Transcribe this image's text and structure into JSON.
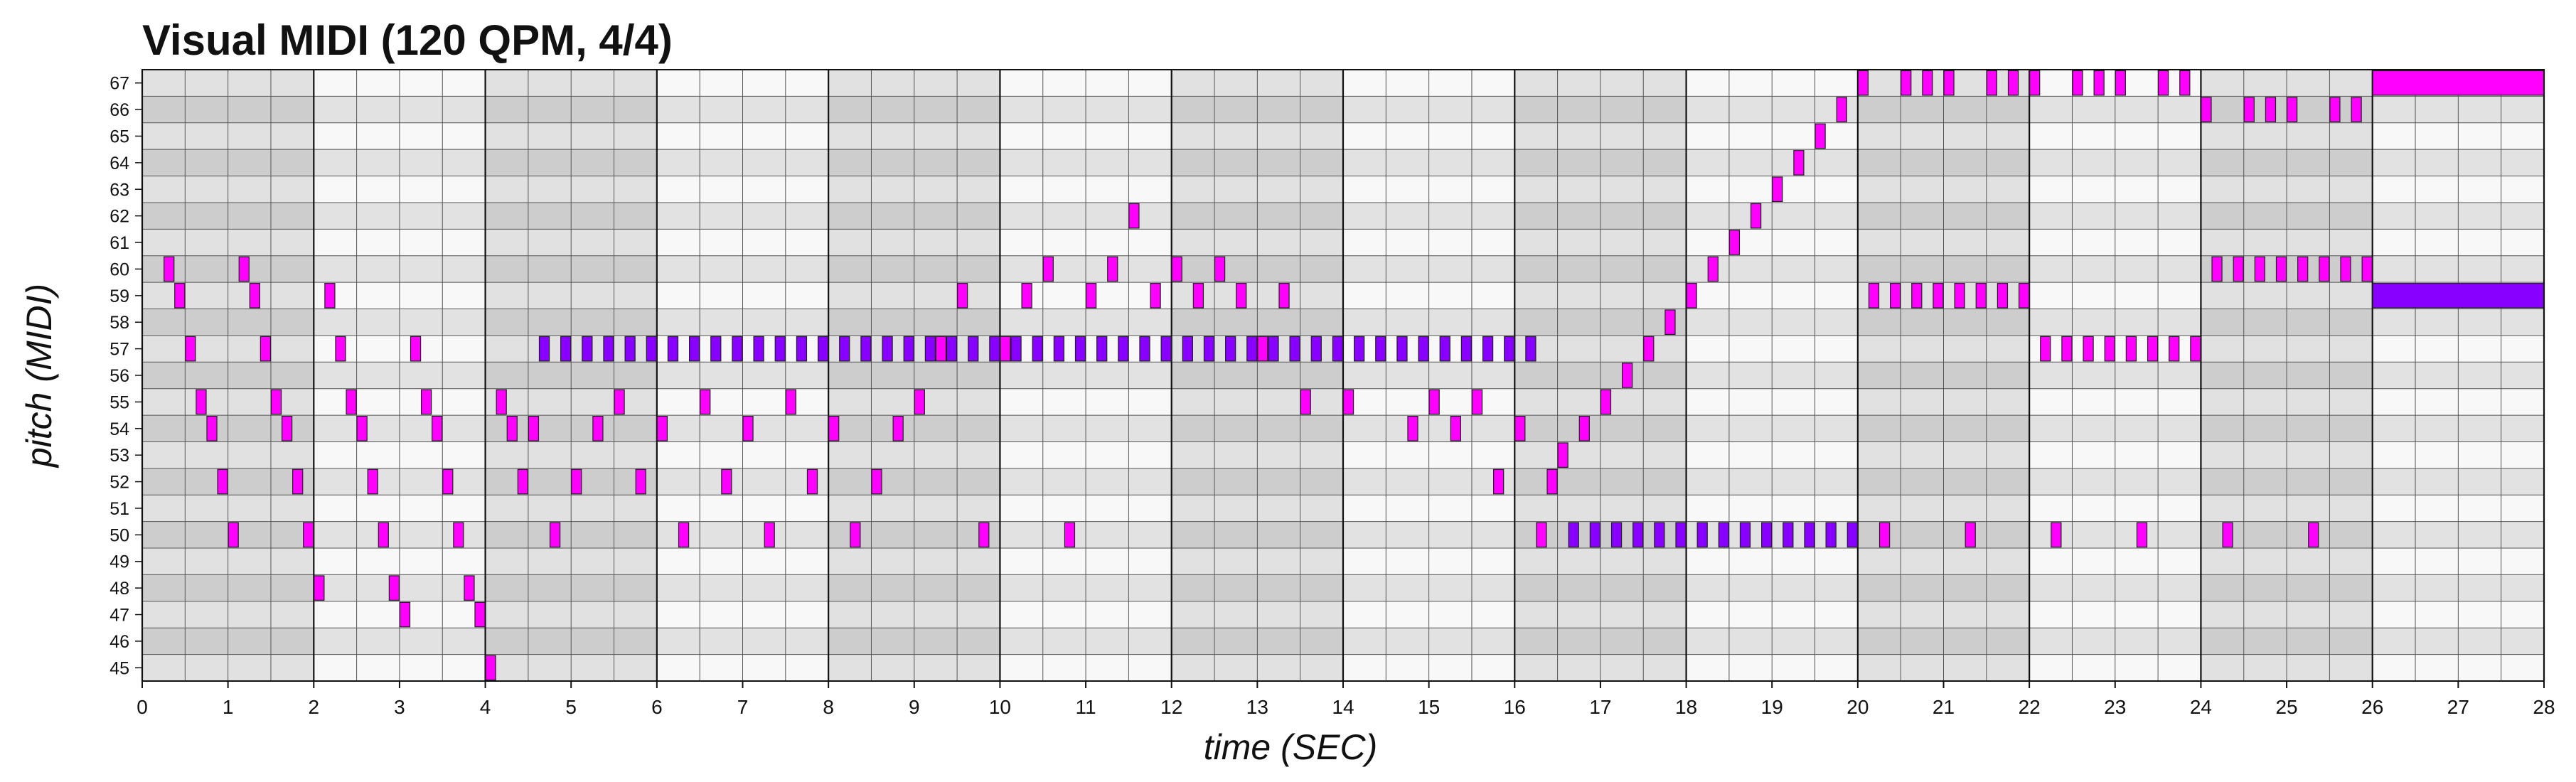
{
  "chart_data": {
    "type": "piano-roll",
    "title": "Visual MIDI (120 QPM, 4/4)",
    "xlabel": "time (SEC)",
    "ylabel": "pitch (MIDI)",
    "xlim": [
      0,
      28
    ],
    "ylim": [
      45,
      67
    ],
    "x_ticks": [
      0,
      1,
      2,
      3,
      4,
      5,
      6,
      7,
      8,
      9,
      10,
      11,
      12,
      13,
      14,
      15,
      16,
      17,
      18,
      19,
      20,
      21,
      22,
      23,
      24,
      25,
      26,
      27,
      28
    ],
    "y_ticks": [
      45,
      46,
      47,
      48,
      49,
      50,
      51,
      52,
      53,
      54,
      55,
      56,
      57,
      58,
      59,
      60,
      61,
      62,
      63,
      64,
      65,
      66,
      67
    ],
    "beat_seconds": 0.5,
    "bar_seconds": 2,
    "colors": {
      "note_magenta": "#ff00ff",
      "note_violet": "#8800ff",
      "shade_dark": "#d2d2d2",
      "shade_mid": "#e2e2e2",
      "shade_light": "#f8f8f8",
      "grid_line": "#555555",
      "bar_line": "#111111"
    },
    "notes": [
      [
        60,
        0.25,
        0.375
      ],
      [
        59,
        0.375,
        0.5
      ],
      [
        57,
        0.5,
        0.625
      ],
      [
        55,
        0.625,
        0.75
      ],
      [
        54,
        0.75,
        0.875
      ],
      [
        52,
        0.875,
        1.0
      ],
      [
        50,
        1.0,
        1.125
      ],
      [
        60,
        1.125,
        1.25
      ],
      [
        59,
        1.25,
        1.375
      ],
      [
        57,
        1.375,
        1.5
      ],
      [
        55,
        1.5,
        1.625
      ],
      [
        54,
        1.625,
        1.75
      ],
      [
        52,
        1.75,
        1.875
      ],
      [
        50,
        1.875,
        2.0
      ],
      [
        48,
        2.0,
        2.125
      ],
      [
        59,
        2.125,
        2.25
      ],
      [
        57,
        2.25,
        2.375
      ],
      [
        55,
        2.375,
        2.5
      ],
      [
        54,
        2.5,
        2.625
      ],
      [
        52,
        2.625,
        2.75
      ],
      [
        50,
        2.75,
        2.875
      ],
      [
        48,
        2.875,
        3.0
      ],
      [
        47,
        3.0,
        3.125
      ],
      [
        57,
        3.125,
        3.25
      ],
      [
        55,
        3.25,
        3.375
      ],
      [
        54,
        3.375,
        3.5
      ],
      [
        52,
        3.5,
        3.625
      ],
      [
        50,
        3.625,
        3.75
      ],
      [
        48,
        3.75,
        3.875
      ],
      [
        47,
        3.875,
        4.0
      ],
      [
        45,
        4.0,
        4.125
      ],
      [
        55,
        4.125,
        4.25
      ],
      [
        54,
        4.25,
        4.375
      ],
      [
        52,
        4.375,
        4.5
      ],
      [
        54,
        4.5,
        4.625
      ],
      [
        50,
        4.75,
        4.875
      ],
      [
        52,
        5.0,
        5.125
      ],
      [
        54,
        5.25,
        5.375
      ],
      [
        55,
        5.5,
        5.625
      ],
      [
        52,
        5.75,
        5.875
      ],
      [
        54,
        6.0,
        6.125
      ],
      [
        50,
        6.25,
        6.375
      ],
      [
        55,
        6.5,
        6.625
      ],
      [
        52,
        6.75,
        6.875
      ],
      [
        54,
        7.0,
        7.125
      ],
      [
        50,
        7.25,
        7.375
      ],
      [
        55,
        7.5,
        7.625
      ],
      [
        52,
        7.75,
        7.875
      ],
      [
        54,
        8.0,
        8.125
      ],
      [
        50,
        8.25,
        8.375
      ],
      [
        52,
        8.5,
        8.625
      ],
      [
        54,
        8.75,
        8.875
      ],
      [
        55,
        9.0,
        9.125
      ],
      [
        57,
        9.25,
        9.375
      ],
      [
        59,
        9.5,
        9.625
      ],
      [
        50,
        9.75,
        9.875
      ],
      [
        57,
        10.0,
        10.125
      ],
      [
        59,
        10.25,
        10.375
      ],
      [
        60,
        10.5,
        10.625
      ],
      [
        50,
        10.75,
        10.875
      ],
      [
        60,
        11.25,
        11.375
      ],
      [
        59,
        11.0,
        11.125
      ],
      [
        62,
        11.5,
        11.625
      ],
      [
        59,
        11.75,
        11.875
      ],
      [
        60,
        12.0,
        12.125
      ],
      [
        59,
        12.25,
        12.375
      ],
      [
        60,
        12.5,
        12.625
      ],
      [
        59,
        12.75,
        12.875
      ],
      [
        57,
        13.0,
        13.125
      ],
      [
        59,
        13.25,
        13.375
      ],
      [
        55,
        13.5,
        13.625
      ],
      [
        55,
        14.0,
        14.125
      ],
      [
        54,
        14.75,
        14.875
      ],
      [
        55,
        15.0,
        15.125
      ],
      [
        54,
        15.25,
        15.375
      ],
      [
        55,
        15.5,
        15.625
      ],
      [
        52,
        15.75,
        15.875
      ],
      [
        54,
        16.0,
        16.125
      ],
      [
        50,
        16.25,
        16.375
      ],
      [
        52,
        16.375,
        16.5
      ],
      [
        53,
        16.5,
        16.625
      ],
      [
        54,
        16.75,
        16.875
      ],
      [
        55,
        17.0,
        17.125
      ],
      [
        56,
        17.25,
        17.375
      ],
      [
        57,
        17.5,
        17.625
      ],
      [
        58,
        17.75,
        17.875
      ],
      [
        59,
        18.0,
        18.125
      ],
      [
        60,
        18.25,
        18.375
      ],
      [
        61,
        18.5,
        18.625
      ],
      [
        62,
        18.75,
        18.875
      ],
      [
        63,
        19.0,
        19.125
      ],
      [
        64,
        19.25,
        19.375
      ],
      [
        65,
        19.5,
        19.625
      ],
      [
        66,
        19.75,
        19.875
      ],
      [
        67,
        20.0,
        20.125
      ],
      [
        59,
        20.125,
        20.25
      ],
      [
        50,
        20.25,
        20.375
      ],
      [
        59,
        20.375,
        20.5
      ],
      [
        67,
        20.5,
        20.625
      ],
      [
        59,
        20.625,
        20.75
      ],
      [
        67,
        20.75,
        20.875
      ],
      [
        59,
        20.875,
        21.0
      ],
      [
        67,
        21.0,
        21.125
      ],
      [
        59,
        21.125,
        21.25
      ],
      [
        50,
        21.25,
        21.375
      ],
      [
        59,
        21.375,
        21.5
      ],
      [
        67,
        21.5,
        21.625
      ],
      [
        59,
        21.625,
        21.75
      ],
      [
        67,
        21.75,
        21.875
      ],
      [
        59,
        21.875,
        22.0
      ],
      [
        67,
        22.0,
        22.125
      ],
      [
        57,
        22.125,
        22.25
      ],
      [
        50,
        22.25,
        22.375
      ],
      [
        57,
        22.375,
        22.5
      ],
      [
        67,
        22.5,
        22.625
      ],
      [
        57,
        22.625,
        22.75
      ],
      [
        67,
        22.75,
        22.875
      ],
      [
        57,
        22.875,
        23.0
      ],
      [
        67,
        23.0,
        23.125
      ],
      [
        57,
        23.125,
        23.25
      ],
      [
        50,
        23.25,
        23.375
      ],
      [
        57,
        23.375,
        23.5
      ],
      [
        67,
        23.5,
        23.625
      ],
      [
        57,
        23.625,
        23.75
      ],
      [
        67,
        23.75,
        23.875
      ],
      [
        57,
        23.875,
        24.0
      ],
      [
        66,
        24.0,
        24.125
      ],
      [
        60,
        24.125,
        24.25
      ],
      [
        50,
        24.25,
        24.375
      ],
      [
        60,
        24.375,
        24.5
      ],
      [
        66,
        24.5,
        24.625
      ],
      [
        60,
        24.625,
        24.75
      ],
      [
        66,
        24.75,
        24.875
      ],
      [
        60,
        24.875,
        25.0
      ],
      [
        66,
        25.0,
        25.125
      ],
      [
        60,
        25.125,
        25.25
      ],
      [
        50,
        25.25,
        25.375
      ],
      [
        60,
        25.375,
        25.5
      ],
      [
        66,
        25.5,
        25.625
      ],
      [
        60,
        25.625,
        25.75
      ],
      [
        66,
        25.75,
        25.875
      ],
      [
        60,
        25.875,
        26.0
      ],
      [
        67,
        26.0,
        28.0
      ]
    ],
    "violet_notes": [
      [
        57,
        4.625,
        4.75
      ],
      [
        57,
        4.875,
        5.0
      ],
      [
        57,
        5.125,
        5.25
      ],
      [
        57,
        5.375,
        5.5
      ],
      [
        57,
        5.625,
        5.75
      ],
      [
        57,
        5.875,
        6.0
      ],
      [
        57,
        6.125,
        6.25
      ],
      [
        57,
        6.375,
        6.5
      ],
      [
        57,
        6.625,
        6.75
      ],
      [
        57,
        6.875,
        7.0
      ],
      [
        57,
        7.125,
        7.25
      ],
      [
        57,
        7.375,
        7.5
      ],
      [
        57,
        7.625,
        7.75
      ],
      [
        57,
        7.875,
        8.0
      ],
      [
        57,
        8.125,
        8.25
      ],
      [
        57,
        8.375,
        8.5
      ],
      [
        57,
        8.625,
        8.75
      ],
      [
        57,
        8.875,
        9.0
      ],
      [
        57,
        9.125,
        9.25
      ],
      [
        57,
        9.375,
        9.5
      ],
      [
        57,
        9.625,
        9.75
      ],
      [
        57,
        9.875,
        10.0
      ],
      [
        57,
        10.125,
        10.25
      ],
      [
        57,
        10.375,
        10.5
      ],
      [
        57,
        10.625,
        10.75
      ],
      [
        57,
        10.875,
        11.0
      ],
      [
        57,
        11.125,
        11.25
      ],
      [
        57,
        11.375,
        11.5
      ],
      [
        57,
        11.625,
        11.75
      ],
      [
        57,
        11.875,
        12.0
      ],
      [
        57,
        12.125,
        12.25
      ],
      [
        57,
        12.375,
        12.5
      ],
      [
        57,
        12.625,
        12.75
      ],
      [
        57,
        12.875,
        13.0
      ],
      [
        57,
        13.125,
        13.25
      ],
      [
        57,
        13.375,
        13.5
      ],
      [
        57,
        13.625,
        13.75
      ],
      [
        57,
        13.875,
        14.0
      ],
      [
        57,
        14.125,
        14.25
      ],
      [
        57,
        14.375,
        14.5
      ],
      [
        57,
        14.625,
        14.75
      ],
      [
        57,
        14.875,
        15.0
      ],
      [
        57,
        15.125,
        15.25
      ],
      [
        57,
        15.375,
        15.5
      ],
      [
        57,
        15.625,
        15.75
      ],
      [
        57,
        15.875,
        16.0
      ],
      [
        57,
        16.125,
        16.25
      ],
      [
        50,
        16.625,
        16.75
      ],
      [
        50,
        16.875,
        17.0
      ],
      [
        50,
        17.125,
        17.25
      ],
      [
        50,
        17.375,
        17.5
      ],
      [
        50,
        17.625,
        17.75
      ],
      [
        50,
        17.875,
        18.0
      ],
      [
        50,
        18.125,
        18.25
      ],
      [
        50,
        18.375,
        18.5
      ],
      [
        50,
        18.625,
        18.75
      ],
      [
        50,
        18.875,
        19.0
      ],
      [
        50,
        19.125,
        19.25
      ],
      [
        50,
        19.375,
        19.5
      ],
      [
        50,
        19.625,
        19.75
      ],
      [
        50,
        19.875,
        20.0
      ],
      [
        59,
        26.0,
        28.0
      ]
    ]
  }
}
